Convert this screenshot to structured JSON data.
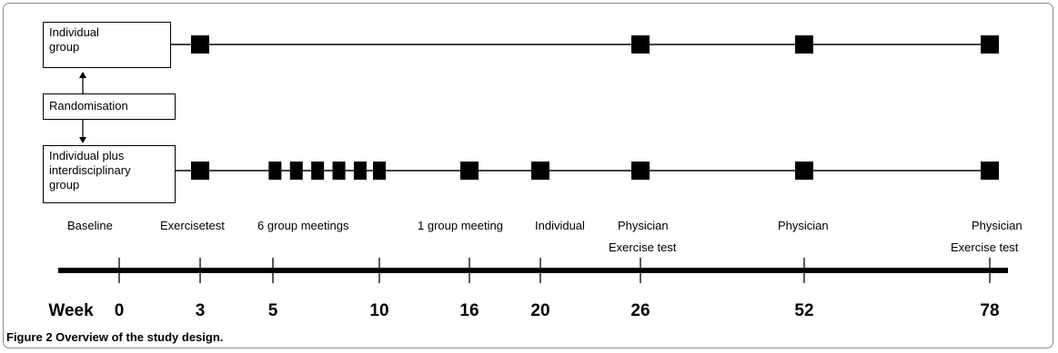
{
  "boxes": {
    "individual_group": "Individual\ngroup",
    "randomisation": "Randomisation",
    "interdisciplinary_group": "Individual plus\ninterdisciplinary\ngroup"
  },
  "row1_markers_weeks": [
    3,
    26,
    52,
    78
  ],
  "row2_markers_weeks": [
    3,
    5.1,
    6.1,
    7.1,
    8.1,
    9.1,
    10,
    16,
    20,
    26,
    52,
    78
  ],
  "events": {
    "baseline": "Baseline",
    "exercise_test": "Exercisetest",
    "group_meetings_6": "6 group meetings",
    "group_meeting_1": "1 group meeting",
    "individual": "Individual",
    "physician_26": "Physician",
    "exercise_test_26": "Exercise test",
    "physician_52": "Physician",
    "physician_78": "Physician",
    "exercise_test_78": "Exercise test"
  },
  "timeline": {
    "week_label": "Week",
    "ticks": [
      0,
      3,
      5,
      10,
      16,
      20,
      26,
      52,
      78
    ]
  },
  "caption": "Figure 2 Overview of the study design."
}
